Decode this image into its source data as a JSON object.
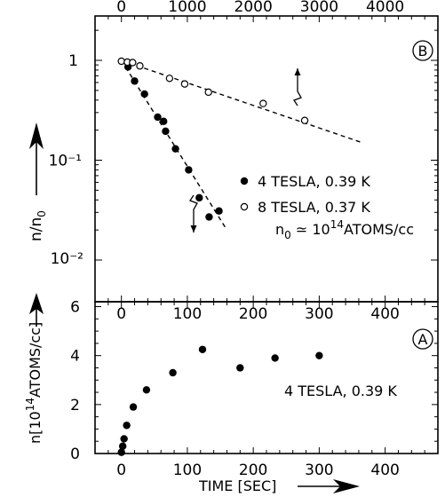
{
  "chart_data": [
    {
      "panel": "B",
      "type": "scatter",
      "xlabel_bottom": "",
      "xlabel_top": "",
      "ylabel": "n/n₀",
      "yscale": "log",
      "ylim": [
        0.01,
        2.0
      ],
      "xlim_bottom": [
        -40,
        480
      ],
      "xlim_top": [
        -400,
        4800
      ],
      "top_axis_ticks": [
        "0",
        "1000",
        "2000",
        "3000",
        "4000"
      ],
      "y_tick_labels": [
        "1",
        "10⁻¹",
        "10⁻²"
      ],
      "panel_label": "B",
      "legend": [
        {
          "marker": "filled-circle",
          "text": "4 TESLA, 0.39 K"
        },
        {
          "marker": "open-circle",
          "text": "8 TESLA, 0.37 K"
        }
      ],
      "annotation": {
        "prefix": "n",
        "sub": "0",
        "mid": " ≃ 10",
        "sup": "14",
        "suffix": "ATOMS/cc"
      },
      "series": [
        {
          "name": "4 TESLA, 0.39 K",
          "axis": "bottom",
          "points": [
            {
              "x": 10,
              "y": 0.86
            },
            {
              "x": 20,
              "y": 0.62
            },
            {
              "x": 35,
              "y": 0.46
            },
            {
              "x": 55,
              "y": 0.27
            },
            {
              "x": 64,
              "y": 0.245
            },
            {
              "x": 67,
              "y": 0.195
            },
            {
              "x": 82,
              "y": 0.13
            },
            {
              "x": 102,
              "y": 0.08
            },
            {
              "x": 118,
              "y": 0.042
            },
            {
              "x": 133,
              "y": 0.027
            },
            {
              "x": 148,
              "y": 0.031
            }
          ],
          "fit": [
            {
              "x": 0,
              "y": 1.0
            },
            {
              "x": 158,
              "y": 0.021
            }
          ]
        },
        {
          "name": "8 TESLA, 0.37 K",
          "axis": "top",
          "points": [
            {
              "x": 0,
              "y": 0.98
            },
            {
              "x": 90,
              "y": 0.96
            },
            {
              "x": 170,
              "y": 0.95
            },
            {
              "x": 280,
              "y": 0.88
            },
            {
              "x": 730,
              "y": 0.66
            },
            {
              "x": 960,
              "y": 0.58
            },
            {
              "x": 1320,
              "y": 0.48
            },
            {
              "x": 2150,
              "y": 0.37
            },
            {
              "x": 2780,
              "y": 0.25
            }
          ],
          "fit": [
            {
              "x": 0,
              "y": 1.0
            },
            {
              "x": 3650,
              "y": 0.15
            }
          ]
        }
      ]
    },
    {
      "panel": "A",
      "type": "scatter",
      "ylabel": {
        "prefix": "n[10",
        "sup": "14",
        "suffix": "ATOMS/cc]"
      },
      "xlabel": "TIME [SEC]",
      "xlim": [
        -40,
        480
      ],
      "ylim": [
        0,
        6.2
      ],
      "x_ticks": [
        "0",
        "100",
        "200",
        "300",
        "400"
      ],
      "y_ticks": [
        "0",
        "2",
        "4",
        "6"
      ],
      "panel_label": "A",
      "annotation": "4 TESLA, 0.39 K",
      "series": [
        {
          "name": "4 TESLA, 0.39 K",
          "points": [
            {
              "x": 0,
              "y": 0.05
            },
            {
              "x": 2,
              "y": 0.3
            },
            {
              "x": 4,
              "y": 0.6
            },
            {
              "x": 8,
              "y": 1.15
            },
            {
              "x": 18,
              "y": 1.9
            },
            {
              "x": 38,
              "y": 2.6
            },
            {
              "x": 78,
              "y": 3.3
            },
            {
              "x": 123,
              "y": 4.25
            },
            {
              "x": 180,
              "y": 3.5
            },
            {
              "x": 233,
              "y": 3.9
            },
            {
              "x": 300,
              "y": 4.0
            }
          ]
        }
      ]
    }
  ]
}
